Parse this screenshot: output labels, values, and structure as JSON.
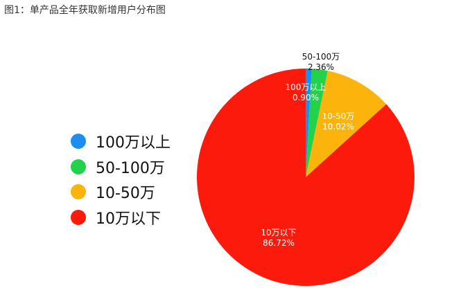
{
  "title": "图1：单产品全年获取新增用户分布图",
  "chart_data": {
    "type": "pie",
    "title": "图1：单产品全年获取新增用户分布图",
    "legend_placement": "left",
    "slices": [
      {
        "label": "100万以上",
        "value": 0.9,
        "value_label": "0.90%",
        "color": "#1a8ff0"
      },
      {
        "label": "50-100万",
        "value": 2.36,
        "value_label": "2.36%",
        "color": "#22d24a"
      },
      {
        "label": "10-50万",
        "value": 10.02,
        "value_label": "10.02%",
        "color": "#fbb40c"
      },
      {
        "label": "10万以下",
        "value": 86.72,
        "value_label": "86.72%",
        "color": "#fc1a0c"
      }
    ]
  }
}
